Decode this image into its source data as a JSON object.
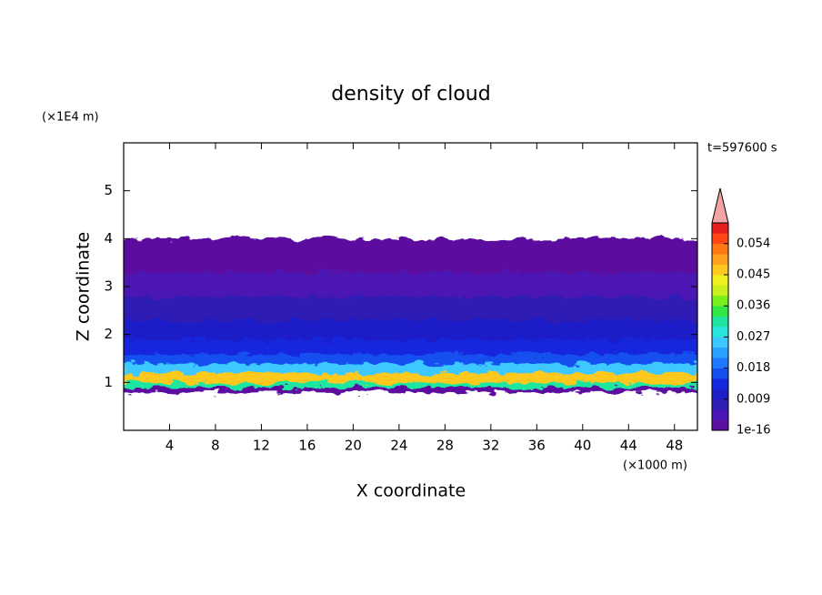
{
  "chart_data": {
    "type": "contour",
    "title": "density of cloud",
    "xlabel": "X coordinate",
    "xunit": "(×1000 m)",
    "ylabel": "Z coordinate",
    "yunit": "(×1E4 m)",
    "annotation": "t=597600 s",
    "xlim": [
      0,
      50
    ],
    "xticks": [
      4,
      8,
      12,
      16,
      20,
      24,
      28,
      32,
      36,
      40,
      44,
      48
    ],
    "ylim": [
      0,
      6
    ],
    "yticks": [
      1,
      2,
      3,
      4,
      5
    ],
    "profile": {
      "bins": [
        0.8,
        0.9,
        1.0,
        1.2,
        1.4,
        1.6,
        1.9,
        2.3,
        2.8,
        3.3,
        3.8,
        4.0
      ],
      "values": [
        0.002,
        0.03,
        0.045,
        0.024,
        0.018,
        0.013,
        0.01,
        0.006,
        0.004,
        0.001,
        0.0005
      ]
    },
    "colorbar": {
      "lim": [
        1e-16,
        0.06
      ],
      "step": 0.003,
      "ticks": [
        {
          "value": 1e-16,
          "label": "1e-16"
        },
        0.009,
        0.018,
        0.027,
        0.036,
        0.045,
        0.054
      ],
      "colors": [
        "#5b0fa0",
        "#4b14b4",
        "#2d1eb4",
        "#1e1ec8",
        "#1428dc",
        "#1450f0",
        "#1e78ff",
        "#28a0ff",
        "#3cc8ff",
        "#28e6dc",
        "#1ee6a0",
        "#32e646",
        "#78f01e",
        "#c8f01e",
        "#f0f01e",
        "#ffc81e",
        "#ffa01e",
        "#ff7814",
        "#ff4614",
        "#e61e1e"
      ],
      "extend_color": "#f4a4a4"
    }
  }
}
